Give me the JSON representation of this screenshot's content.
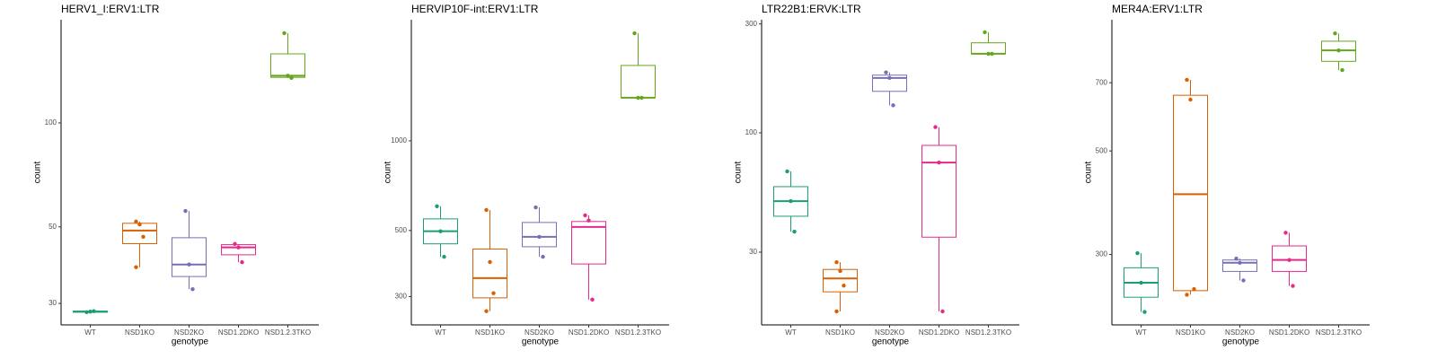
{
  "chart_data": [
    {
      "type": "box",
      "title": "HERV1_I:ERV1:LTR",
      "x_label": "genotype",
      "y_label": "count",
      "log_y": true,
      "categories": [
        "WT",
        "NSD1KO",
        "NSD2KO",
        "NSD1.2DKO",
        "NSD1.2.3TKO"
      ],
      "colors": [
        "#1b9e77",
        "#d95f02",
        "#7570b3",
        "#e7298a",
        "#66a61e"
      ],
      "ylim": [
        26,
        199
      ],
      "yticks": [
        30,
        50,
        100
      ],
      "groups": [
        {
          "box": [
            28.3,
            28.3,
            28.4,
            28.5,
            28.5
          ],
          "points": [
            28.3,
            28.4,
            28.5
          ]
        },
        {
          "box": [
            38.2,
            44.7,
            48.8,
            51.2,
            51.8
          ],
          "points": [
            51.8,
            50.8,
            46.8,
            38.2
          ]
        },
        {
          "box": [
            33.0,
            35.9,
            38.9,
            46.5,
            55.6
          ],
          "points": [
            55.6,
            38.9,
            33.0
          ]
        },
        {
          "box": [
            39.5,
            41.5,
            43.6,
            44.4,
            44.6
          ],
          "points": [
            44.6,
            43.6,
            39.5
          ]
        },
        {
          "box": [
            135,
            135.5,
            137,
            158.5,
            182
          ],
          "points": [
            182,
            137,
            135
          ]
        }
      ]
    },
    {
      "type": "box",
      "title": "HERVIP10F-int:ERV1:LTR",
      "x_label": "genotype",
      "y_label": "count",
      "log_y": true,
      "categories": [
        "WT",
        "NSD1KO",
        "NSD2KO",
        "NSD1.2DKO",
        "NSD1.2.3TKO"
      ],
      "colors": [
        "#1b9e77",
        "#d95f02",
        "#7570b3",
        "#e7298a",
        "#66a61e"
      ],
      "ylim": [
        241,
        2550
      ],
      "yticks": [
        300,
        500,
        1000
      ],
      "groups": [
        {
          "box": [
            408,
            451,
            497,
            547,
            603
          ],
          "points": [
            603,
            497,
            408
          ]
        },
        {
          "box": [
            268,
            297,
            346,
            433,
            586
          ],
          "points": [
            586,
            392,
            308,
            268
          ]
        },
        {
          "box": [
            408,
            441,
            476,
            532,
            598
          ],
          "points": [
            598,
            476,
            408
          ]
        },
        {
          "box": [
            293,
            386,
            514,
            536,
            562
          ],
          "points": [
            562,
            540,
            293
          ]
        },
        {
          "box": [
            1395,
            1395,
            1395,
            1791,
            2297
          ],
          "points": [
            2297,
            1395,
            1395
          ]
        }
      ]
    },
    {
      "type": "box",
      "title": "LTR22B1:ERVK:LTR",
      "x_label": "genotype",
      "y_label": "count",
      "log_y": true,
      "categories": [
        "WT",
        "NSD1KO",
        "NSD2KO",
        "NSD1.2DKO",
        "NSD1.2.3TKO"
      ],
      "colors": [
        "#1b9e77",
        "#d95f02",
        "#7570b3",
        "#e7298a",
        "#66a61e"
      ],
      "ylim": [
        14.4,
        313
      ],
      "yticks": [
        30,
        100,
        300
      ],
      "groups": [
        {
          "box": [
            36.9,
            43.1,
            50.2,
            58.1,
            67.8
          ],
          "points": [
            67.8,
            50.2,
            36.9
          ]
        },
        {
          "box": [
            16.5,
            20.1,
            23.0,
            25.2,
            27.1
          ],
          "points": [
            27.1,
            24.8,
            21.4,
            16.5
          ]
        },
        {
          "box": [
            132,
            152,
            174,
            179,
            184
          ],
          "points": [
            184,
            174,
            132
          ]
        },
        {
          "box": [
            16.5,
            34.9,
            74.1,
            88.1,
            106
          ],
          "points": [
            106,
            74.1,
            16.5
          ]
        },
        {
          "box": [
            222,
            222,
            222,
            248,
            276
          ],
          "points": [
            276,
            222,
            222
          ]
        }
      ]
    },
    {
      "type": "box",
      "title": "MER4A:ERV1:LTR",
      "x_label": "genotype",
      "y_label": "count",
      "log_y": true,
      "categories": [
        "WT",
        "NSD1KO",
        "NSD2KO",
        "NSD1.2DKO",
        "NSD1.2.3TKO"
      ],
      "colors": [
        "#1b9e77",
        "#d95f02",
        "#7570b3",
        "#e7298a",
        "#66a61e"
      ],
      "ylim": [
        212,
        955
      ],
      "yticks": [
        300,
        500,
        700
      ],
      "groups": [
        {
          "box": [
            226,
            243,
            261,
            281,
            302
          ],
          "points": [
            302,
            261,
            226
          ]
        },
        {
          "box": [
            246,
            251,
            404,
            658,
            710
          ],
          "points": [
            710,
            644,
            253,
            246
          ]
        },
        {
          "box": [
            264,
            276,
            288,
            292,
            294
          ],
          "points": [
            294,
            288,
            264
          ]
        },
        {
          "box": [
            257,
            276,
            292,
            313,
            334
          ],
          "points": [
            334,
            292,
            257
          ]
        },
        {
          "box": [
            745,
            778,
            821,
            859,
            893
          ],
          "points": [
            893,
            821,
            745
          ]
        }
      ]
    }
  ]
}
